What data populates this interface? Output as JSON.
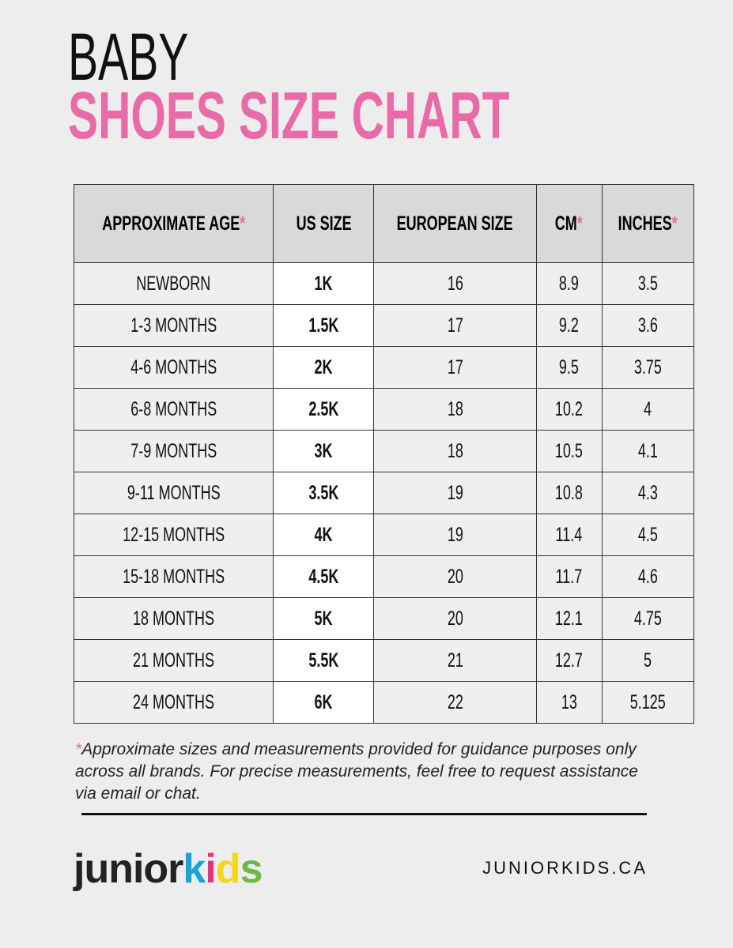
{
  "title": {
    "line1": "BABY",
    "line2": "SHOES SIZE CHART"
  },
  "colors": {
    "accent": "#e86aa6",
    "header_bg": "#d9d9d9"
  },
  "table": {
    "headers": [
      {
        "label": "APPROXIMATE AGE",
        "star": "*"
      },
      {
        "label": "US SIZE",
        "star": ""
      },
      {
        "label": "EUROPEAN SIZE",
        "star": ""
      },
      {
        "label": "CM",
        "star": "*"
      },
      {
        "label": "INCHES",
        "star": "*"
      }
    ],
    "rows": [
      [
        "NEWBORN",
        "1K",
        "16",
        "8.9",
        "3.5"
      ],
      [
        "1-3 MONTHS",
        "1.5K",
        "17",
        "9.2",
        "3.6"
      ],
      [
        "4-6 MONTHS",
        "2K",
        "17",
        "9.5",
        "3.75"
      ],
      [
        "6-8 MONTHS",
        "2.5K",
        "18",
        "10.2",
        "4"
      ],
      [
        "7-9 MONTHS",
        "3K",
        "18",
        "10.5",
        "4.1"
      ],
      [
        "9-11 MONTHS",
        "3.5K",
        "19",
        "10.8",
        "4.3"
      ],
      [
        "12-15 MONTHS",
        "4K",
        "19",
        "11.4",
        "4.5"
      ],
      [
        "15-18 MONTHS",
        "4.5K",
        "20",
        "11.7",
        "4.6"
      ],
      [
        "18 MONTHS",
        "5K",
        "20",
        "12.1",
        "4.75"
      ],
      [
        "21 MONTHS",
        "5.5K",
        "21",
        "12.7",
        "5"
      ],
      [
        "24 MONTHS",
        "6K",
        "22",
        "13",
        "5.125"
      ]
    ]
  },
  "note": {
    "star": "*",
    "text": "Approximate sizes and measurements provided for guidance purposes only across all brands. For precise measurements, feel free to request assistance via email or chat."
  },
  "footer": {
    "logo": "juniorkids",
    "website": "JUNIORKIDS.CA"
  }
}
